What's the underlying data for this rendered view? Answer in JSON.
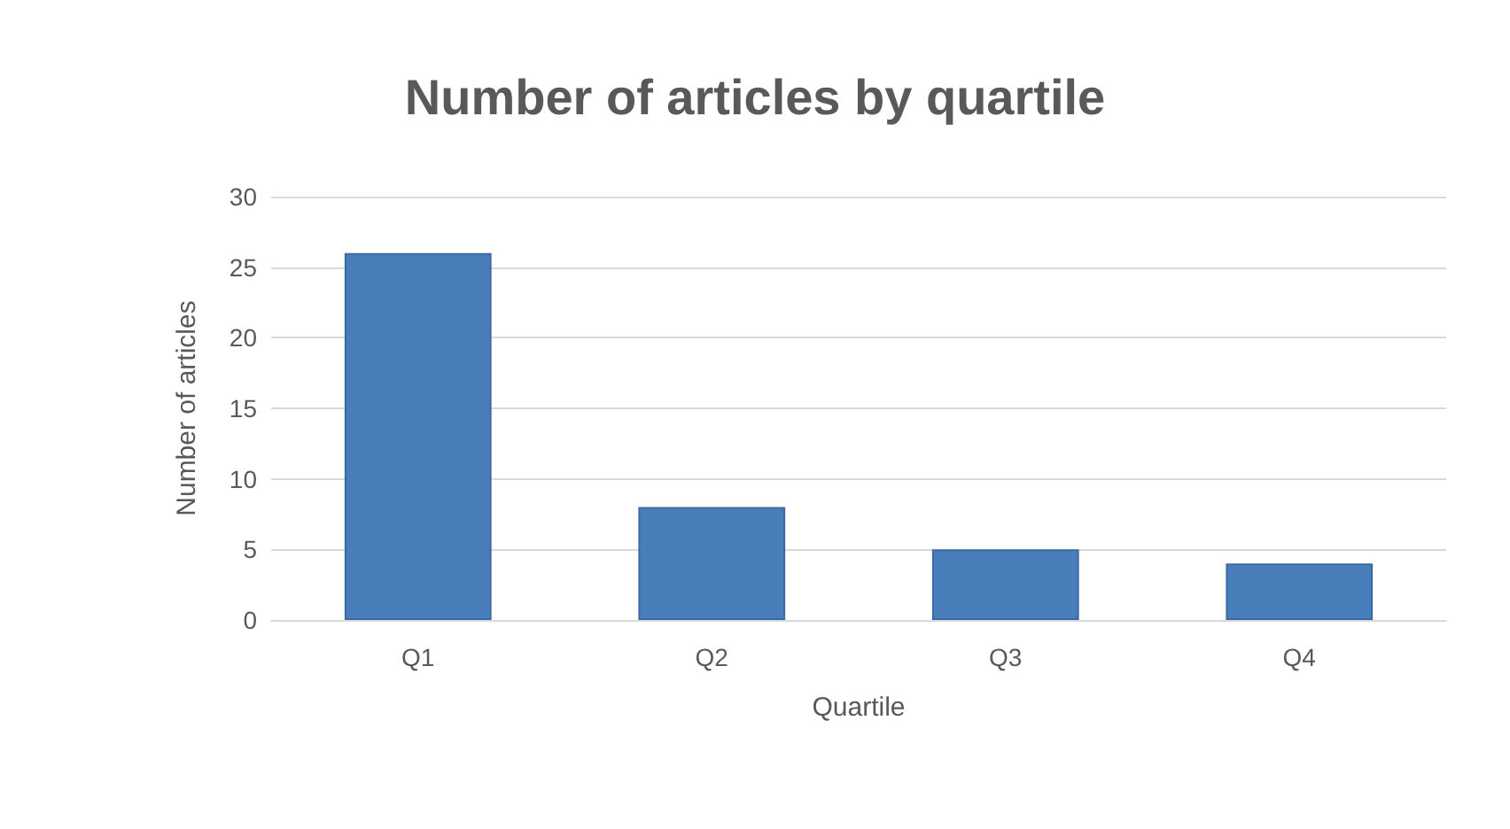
{
  "chart_data": {
    "type": "bar",
    "title": "Number of articles by quartile",
    "xlabel": "Quartile",
    "ylabel": "Number of articles",
    "categories": [
      "Q1",
      "Q2",
      "Q3",
      "Q4"
    ],
    "values": [
      26,
      8,
      5,
      4
    ],
    "color": "#4a7ebb",
    "ylim": [
      0,
      30
    ],
    "yticks": [
      0,
      5,
      10,
      15,
      20,
      25,
      30
    ],
    "grid": "y"
  }
}
